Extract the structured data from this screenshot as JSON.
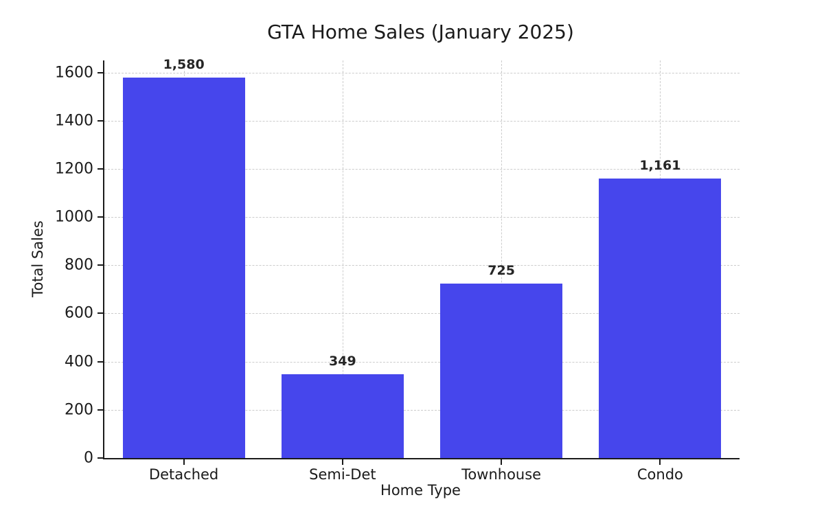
{
  "chart_data": {
    "type": "bar",
    "title": "GTA Home Sales (January 2025)",
    "xlabel": "Home Type",
    "ylabel": "Total Sales",
    "categories": [
      "Detached",
      "Semi-Det",
      "Townhouse",
      "Condo"
    ],
    "values": [
      1580,
      349,
      725,
      1161
    ],
    "value_labels": [
      "1,580",
      "349",
      "725",
      "1,161"
    ],
    "yticks": [
      0,
      200,
      400,
      600,
      800,
      1000,
      1200,
      1400,
      1600
    ],
    "ylim": [
      0,
      1650
    ],
    "grid": true,
    "legend": "none",
    "bar_color": "#4646EC",
    "grid_color": "#cccccc",
    "axis_color": "#1a1a1a"
  }
}
